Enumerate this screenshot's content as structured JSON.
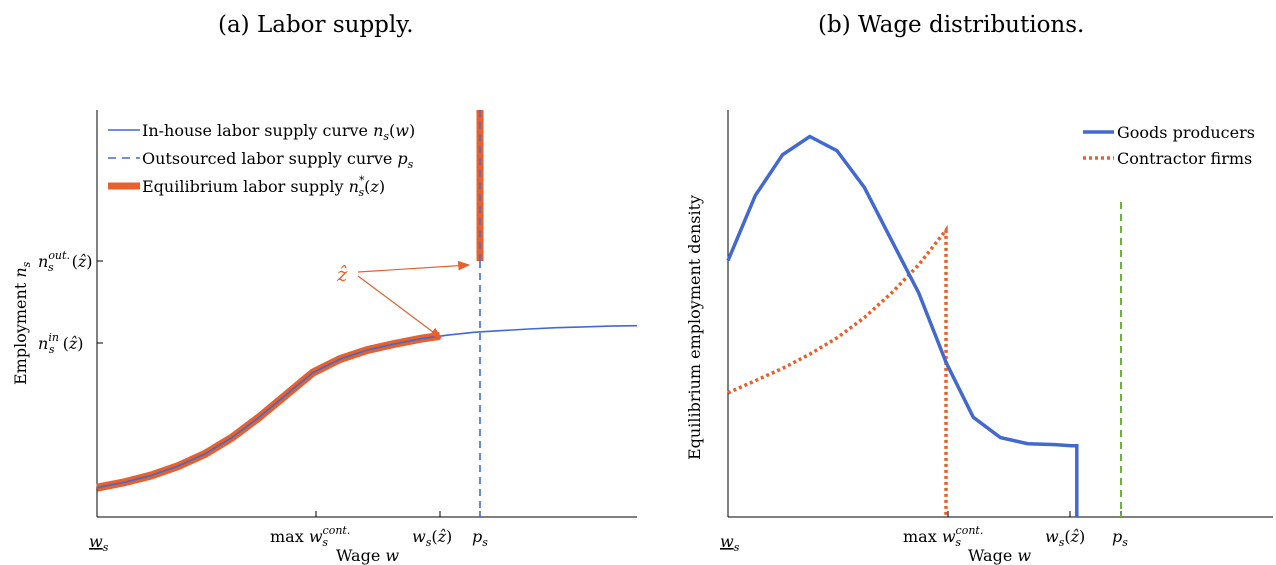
{
  "panel_a": {
    "title": "(a) Labor supply."
  },
  "panel_b": {
    "title": "(b) Wage distributions."
  },
  "colors": {
    "blue": "#4169cf",
    "orange": "#e8602c",
    "green": "#6bb33c"
  },
  "chart_data": [
    {
      "type": "line",
      "panel": "a",
      "xlabel": "Wage w",
      "ylabel": "Employment n_s",
      "x_ticks": [
        "w_s",
        "max w_s^cont.",
        "w_s(ẑ)",
        "p_s"
      ],
      "y_ticks": [
        "n_s^in(ẑ)",
        "n_s^out.(ẑ)"
      ],
      "annotation": "ẑ",
      "xlim": [
        0,
        10
      ],
      "ylim": [
        0,
        10
      ],
      "series": [
        {
          "name": "In-house labor supply curve n_s(w)",
          "style": "solid-blue-thin",
          "x": [
            0,
            0.5,
            1,
            1.5,
            2,
            2.5,
            3,
            3.5,
            4,
            4.5,
            5,
            5.5,
            6,
            6.5,
            7,
            7.5,
            8,
            8.5,
            9,
            9.5,
            10
          ],
          "y": [
            0.72,
            0.85,
            1.02,
            1.25,
            1.55,
            1.95,
            2.45,
            3.0,
            3.55,
            3.88,
            4.1,
            4.25,
            4.38,
            4.47,
            4.54,
            4.58,
            4.62,
            4.65,
            4.67,
            4.69,
            4.7
          ]
        },
        {
          "name": "Outsourced labor supply curve p_s",
          "style": "dashed-blue",
          "x": [
            7.0,
            7.0
          ],
          "y": [
            0,
            6.35
          ]
        },
        {
          "name": "Equilibrium labor supply n_s^*(z)",
          "style": "thick-orange",
          "segments": [
            {
              "x": [
                0,
                0.5,
                1,
                1.5,
                2,
                2.5,
                3,
                3.5,
                4,
                4.5,
                5,
                5.5,
                6,
                6.35
              ],
              "y": [
                0.72,
                0.85,
                1.02,
                1.25,
                1.55,
                1.95,
                2.45,
                3.0,
                3.55,
                3.88,
                4.1,
                4.25,
                4.38,
                4.45
              ]
            },
            {
              "x": [
                7.0,
                7.0
              ],
              "y": [
                6.35,
                10.1
              ]
            }
          ]
        }
      ]
    },
    {
      "type": "line",
      "panel": "b",
      "xlabel": "Wage w",
      "ylabel": "Equilibrium employment density",
      "x_ticks": [
        "w_s",
        "max w_s^cont.",
        "w_s(ẑ)",
        "p_s"
      ],
      "xlim": [
        0,
        10
      ],
      "ylim": [
        0,
        10
      ],
      "series": [
        {
          "name": "Goods producers",
          "style": "solid-blue-thick",
          "x": [
            0,
            0.5,
            1,
            1.5,
            2,
            2.5,
            3,
            3.5,
            4,
            4.5,
            5,
            5.5,
            6,
            6.3,
            6.4,
            6.4
          ],
          "y": [
            6.3,
            7.9,
            8.9,
            9.35,
            9.0,
            8.1,
            6.8,
            5.5,
            3.8,
            2.45,
            1.95,
            1.8,
            1.78,
            1.75,
            1.75,
            0
          ]
        },
        {
          "name": "Contractor firms",
          "style": "dotted-orange",
          "x": [
            0,
            0.5,
            1,
            1.5,
            2,
            2.5,
            3,
            3.5,
            4,
            4.0
          ],
          "y": [
            3.05,
            3.35,
            3.65,
            4.0,
            4.4,
            4.9,
            5.5,
            6.2,
            7.05,
            0
          ]
        },
        {
          "name": "p_s",
          "style": "dashed-green",
          "x": [
            7.2,
            7.2
          ],
          "y": [
            0,
            8.0
          ]
        }
      ]
    }
  ]
}
